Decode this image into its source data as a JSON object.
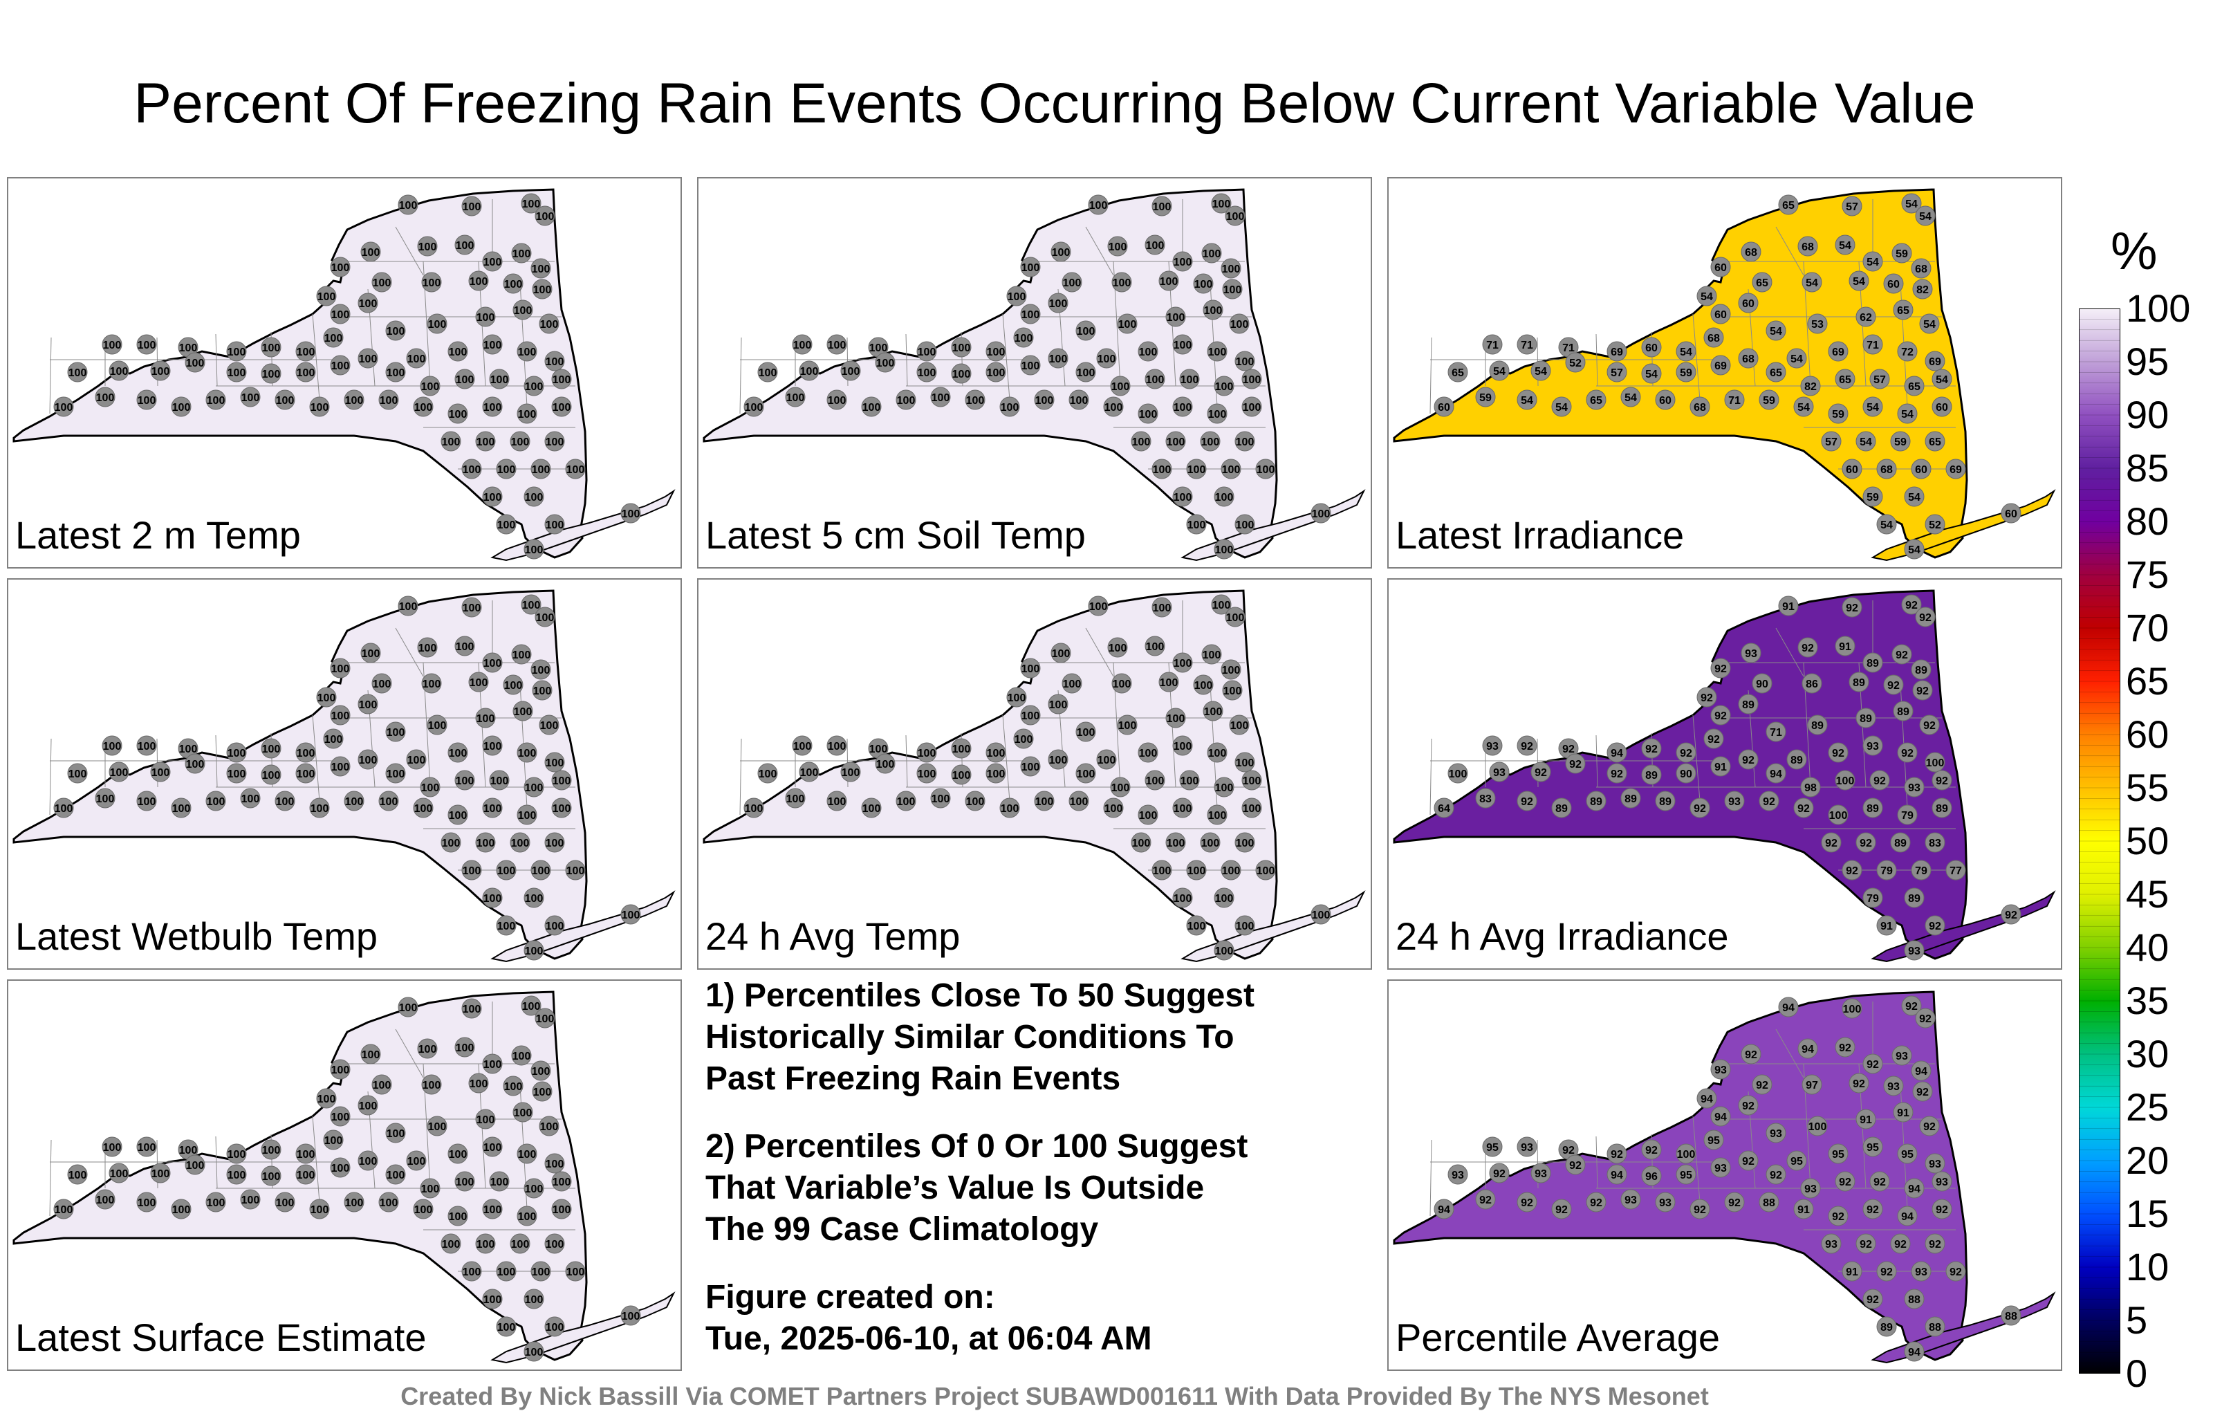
{
  "title": "Percent Of Freezing Rain Events Occurring Below Current Variable Value",
  "panels": [
    {
      "label": "Latest 2 m Temp",
      "fill": "#f0eaf5",
      "values": [
        "100",
        "100",
        "100",
        "100",
        "100",
        "100",
        "100",
        "100",
        "100",
        "100",
        "100",
        "100",
        "100",
        "100",
        "100",
        "100",
        "100",
        "100",
        "100",
        "100",
        "100",
        "100",
        "100",
        "100",
        "100",
        "100",
        "100",
        "100",
        "100",
        "100",
        "100",
        "100",
        "100",
        "100",
        "100",
        "100",
        "100",
        "100",
        "100",
        "100",
        "100",
        "100",
        "100",
        "100",
        "100",
        "100",
        "100",
        "100",
        "100",
        "100",
        "100",
        "100",
        "100",
        "100",
        "100",
        "100",
        "100",
        "100",
        "100",
        "100",
        "100",
        "100",
        "100",
        "100",
        "100",
        "100",
        "100",
        "100",
        "100",
        "100",
        "100",
        "100",
        "100",
        "100",
        "100",
        "100",
        "100",
        "100",
        "100",
        "100"
      ]
    },
    {
      "label": "Latest 5 cm Soil Temp",
      "fill": "#f0eaf5",
      "values": [
        "100",
        "100",
        "100",
        "100",
        "100",
        "100",
        "100",
        "100",
        "100",
        "100",
        "100",
        "100",
        "100",
        "100",
        "100",
        "100",
        "100",
        "100",
        "100",
        "100",
        "100",
        "100",
        "100",
        "100",
        "100",
        "100",
        "100",
        "100",
        "100",
        "100",
        "100",
        "100",
        "100",
        "100",
        "100",
        "100",
        "100",
        "100",
        "100",
        "100",
        "100",
        "100",
        "100",
        "100",
        "100",
        "100",
        "100",
        "100",
        "100",
        "100",
        "100",
        "100",
        "100",
        "100",
        "100",
        "100",
        "100",
        "100",
        "100",
        "100",
        "100",
        "100",
        "100",
        "100",
        "100",
        "100",
        "100",
        "100",
        "100",
        "100",
        "100",
        "100",
        "100",
        "100",
        "100",
        "100",
        "100",
        "100",
        "100",
        "100"
      ]
    },
    {
      "label": "Latest Irradiance",
      "fill": "#ffd000",
      "values": [
        "65",
        "57",
        "54",
        "54",
        "60",
        "68",
        "68",
        "54",
        "54",
        "59",
        "68",
        "54",
        "65",
        "54",
        "54",
        "60",
        "82",
        "62",
        "65",
        "54",
        "53",
        "54",
        "60",
        "60",
        "71",
        "71",
        "71",
        "69",
        "60",
        "54",
        "68",
        "54",
        "69",
        "71",
        "72",
        "69",
        "65",
        "54",
        "54",
        "52",
        "57",
        "54",
        "59",
        "69",
        "68",
        "65",
        "82",
        "65",
        "57",
        "65",
        "54",
        "60",
        "59",
        "54",
        "54",
        "65",
        "54",
        "60",
        "68",
        "71",
        "59",
        "54",
        "59",
        "54",
        "54",
        "60",
        "57",
        "54",
        "59",
        "65",
        "60",
        "68",
        "60",
        "69",
        "59",
        "54",
        "54",
        "52",
        "60",
        "54"
      ]
    },
    {
      "label": "Latest Wetbulb Temp",
      "fill": "#f0eaf5",
      "values": [
        "100",
        "100",
        "100",
        "100",
        "100",
        "100",
        "100",
        "100",
        "100",
        "100",
        "100",
        "100",
        "100",
        "100",
        "100",
        "100",
        "100",
        "100",
        "100",
        "100",
        "100",
        "100",
        "100",
        "100",
        "100",
        "100",
        "100",
        "100",
        "100",
        "100",
        "100",
        "100",
        "100",
        "100",
        "100",
        "100",
        "100",
        "100",
        "100",
        "100",
        "100",
        "100",
        "100",
        "100",
        "100",
        "100",
        "100",
        "100",
        "100",
        "100",
        "100",
        "100",
        "100",
        "100",
        "100",
        "100",
        "100",
        "100",
        "100",
        "100",
        "100",
        "100",
        "100",
        "100",
        "100",
        "100",
        "100",
        "100",
        "100",
        "100",
        "100",
        "100",
        "100",
        "100",
        "100",
        "100",
        "100",
        "100",
        "100",
        "100"
      ]
    },
    {
      "label": "24 h Avg Temp",
      "fill": "#f0eaf5",
      "values": [
        "100",
        "100",
        "100",
        "100",
        "100",
        "100",
        "100",
        "100",
        "100",
        "100",
        "100",
        "100",
        "100",
        "100",
        "100",
        "100",
        "100",
        "100",
        "100",
        "100",
        "100",
        "100",
        "100",
        "100",
        "100",
        "100",
        "100",
        "100",
        "100",
        "100",
        "100",
        "100",
        "100",
        "100",
        "100",
        "100",
        "100",
        "100",
        "100",
        "100",
        "100",
        "100",
        "100",
        "100",
        "100",
        "100",
        "100",
        "100",
        "100",
        "100",
        "100",
        "100",
        "100",
        "100",
        "100",
        "100",
        "100",
        "100",
        "100",
        "100",
        "100",
        "100",
        "100",
        "100",
        "100",
        "100",
        "100",
        "100",
        "100",
        "100",
        "100",
        "100",
        "100",
        "100",
        "100",
        "100",
        "100",
        "100",
        "100",
        "100"
      ]
    },
    {
      "label": "24 h Avg Irradiance",
      "fill": "#6a1fa0",
      "values": [
        "91",
        "92",
        "92",
        "92",
        "92",
        "93",
        "92",
        "91",
        "89",
        "92",
        "89",
        "92",
        "90",
        "86",
        "89",
        "92",
        "92",
        "89",
        "89",
        "92",
        "89",
        "71",
        "89",
        "92",
        "93",
        "92",
        "92",
        "94",
        "92",
        "92",
        "92",
        "89",
        "92",
        "93",
        "92",
        "100",
        "100",
        "93",
        "92",
        "92",
        "92",
        "89",
        "90",
        "91",
        "92",
        "94",
        "98",
        "100",
        "92",
        "93",
        "92",
        "64",
        "83",
        "92",
        "89",
        "89",
        "89",
        "89",
        "92",
        "93",
        "92",
        "92",
        "100",
        "89",
        "79",
        "89",
        "92",
        "92",
        "89",
        "83",
        "92",
        "79",
        "79",
        "77",
        "79",
        "89",
        "91",
        "92",
        "92",
        "93"
      ]
    },
    {
      "label": "Latest Surface Estimate",
      "fill": "#f0eaf5",
      "values": [
        "100",
        "100",
        "100",
        "100",
        "100",
        "100",
        "100",
        "100",
        "100",
        "100",
        "100",
        "100",
        "100",
        "100",
        "100",
        "100",
        "100",
        "100",
        "100",
        "100",
        "100",
        "100",
        "100",
        "100",
        "100",
        "100",
        "100",
        "100",
        "100",
        "100",
        "100",
        "100",
        "100",
        "100",
        "100",
        "100",
        "100",
        "100",
        "100",
        "100",
        "100",
        "100",
        "100",
        "100",
        "100",
        "100",
        "100",
        "100",
        "100",
        "100",
        "100",
        "100",
        "100",
        "100",
        "100",
        "100",
        "100",
        "100",
        "100",
        "100",
        "100",
        "100",
        "100",
        "100",
        "100",
        "100",
        "100",
        "100",
        "100",
        "100",
        "100",
        "100",
        "100",
        "100",
        "100",
        "100",
        "100",
        "100",
        "100",
        "100"
      ]
    },
    {
      "label": "Percentile Average",
      "fill": "#8a44bb",
      "values": [
        "94",
        "100",
        "92",
        "92",
        "93",
        "92",
        "94",
        "92",
        "92",
        "93",
        "94",
        "94",
        "92",
        "97",
        "92",
        "93",
        "92",
        "91",
        "91",
        "92",
        "100",
        "93",
        "92",
        "94",
        "95",
        "93",
        "92",
        "92",
        "92",
        "100",
        "95",
        "95",
        "95",
        "95",
        "95",
        "93",
        "93",
        "92",
        "93",
        "92",
        "94",
        "96",
        "95",
        "93",
        "92",
        "92",
        "93",
        "92",
        "92",
        "94",
        "93",
        "94",
        "92",
        "92",
        "92",
        "92",
        "93",
        "93",
        "92",
        "92",
        "88",
        "91",
        "92",
        "92",
        "94",
        "92",
        "93",
        "92",
        "92",
        "92",
        "91",
        "92",
        "93",
        "92",
        "92",
        "88",
        "89",
        "88",
        "88",
        "94"
      ]
    }
  ],
  "notes": [
    "1) Percentiles Close To 50 Suggest\nHistorically Similar Conditions To\nPast Freezing Rain Events",
    "2) Percentiles Of 0 Or 100 Suggest\nThat Variable’s Value Is Outside\nThe 99 Case Climatology",
    "Figure created on:\nTue, 2025-06-10, at 06:04 AM"
  ],
  "colorbar": {
    "unit": "%",
    "ticks": [
      "100",
      "95",
      "90",
      "85",
      "80",
      "75",
      "70",
      "65",
      "60",
      "55",
      "50",
      "45",
      "40",
      "35",
      "30",
      "25",
      "20",
      "15",
      "10",
      "5",
      "0"
    ],
    "stops": [
      "#000000",
      "#000060",
      "#0000c0",
      "#0050ff",
      "#00a0ff",
      "#00d8d8",
      "#00c080",
      "#00b000",
      "#80d000",
      "#e0f000",
      "#ffff00",
      "#ffc000",
      "#ff8000",
      "#ff2000",
      "#c00000",
      "#a00040",
      "#7000a0",
      "#6020a0",
      "#9050c0",
      "#c0a0d8",
      "#f5f0f8"
    ]
  },
  "footer": "Created By Nick Bassill Via COMET Partners Project SUBAWD001611 With Data Provided By The NYS Mesonet"
}
